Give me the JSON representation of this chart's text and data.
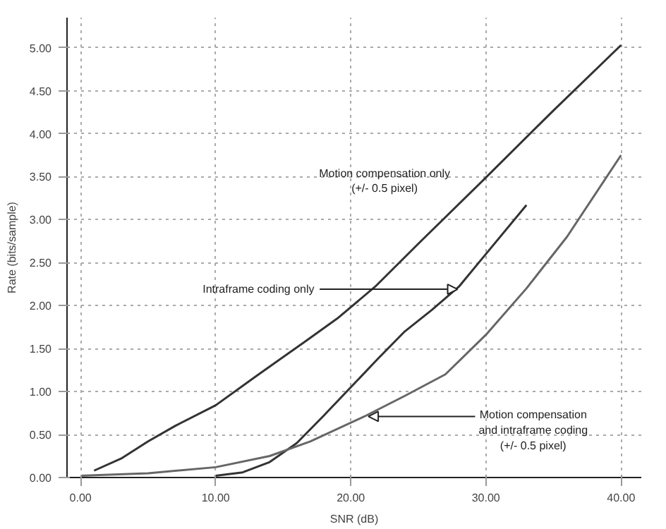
{
  "chart_data": {
    "type": "line",
    "xlabel": "SNR (dB)",
    "ylabel": "Rate (bits/sample)",
    "xlim": [
      -1,
      41.5
    ],
    "ylim": [
      0,
      5.35
    ],
    "xticks": [
      {
        "value": 0,
        "label": "0.00"
      },
      {
        "value": 10,
        "label": "10.00"
      },
      {
        "value": 20,
        "label": "20.00"
      },
      {
        "value": 30,
        "label": "30.00"
      },
      {
        "value": 40,
        "label": "40.00"
      }
    ],
    "yticks": [
      {
        "value": 0,
        "label": "0.00"
      },
      {
        "value": 0.5,
        "label": "0.50"
      },
      {
        "value": 1,
        "label": "1.00"
      },
      {
        "value": 1.5,
        "label": "1.50"
      },
      {
        "value": 2,
        "label": "2.00"
      },
      {
        "value": 2.5,
        "label": "2.50"
      },
      {
        "value": 3,
        "label": "3.00"
      },
      {
        "value": 3.5,
        "label": "3.50"
      },
      {
        "value": 4,
        "label": "4.00"
      },
      {
        "value": 4.5,
        "label": "4.50"
      },
      {
        "value": 5,
        "label": "5.00"
      }
    ],
    "grid": true,
    "line_style": "solid",
    "marker": "none",
    "series": [
      {
        "color": "#333333",
        "x": [
          1,
          3,
          5,
          7,
          10,
          13,
          16.6,
          19,
          21.8,
          25,
          30,
          35,
          40
        ],
        "values": [
          0.08,
          0.22,
          0.42,
          0.6,
          0.84,
          1.18,
          1.58,
          1.85,
          2.22,
          2.72,
          3.49,
          4.27,
          5.03
        ]
      },
      {
        "color": "#333333",
        "x": [
          10,
          12,
          14,
          16,
          18,
          20,
          22,
          24,
          26,
          28,
          30,
          33
        ],
        "values": [
          0.02,
          0.06,
          0.18,
          0.4,
          0.72,
          1.05,
          1.38,
          1.7,
          1.95,
          2.22,
          2.6,
          3.17
        ]
      },
      {
        "color": "#666666",
        "x": [
          0,
          5,
          10,
          14,
          17,
          21,
          24,
          27,
          30,
          33,
          36,
          40
        ],
        "values": [
          0.02,
          0.05,
          0.12,
          0.25,
          0.42,
          0.71,
          0.95,
          1.2,
          1.66,
          2.2,
          2.8,
          3.75
        ]
      }
    ],
    "annotations": [
      "Motion compensation only\n(+/- 0.5 pixel)",
      {
        "text": "Intraframe coding only",
        "x": 27.9,
        "y": 2.19
      },
      {
        "text": "Motion compensation\nand intraframe coding\n(+/- 0.5 pixel)",
        "x": 21.3,
        "y": 0.71
      }
    ]
  }
}
